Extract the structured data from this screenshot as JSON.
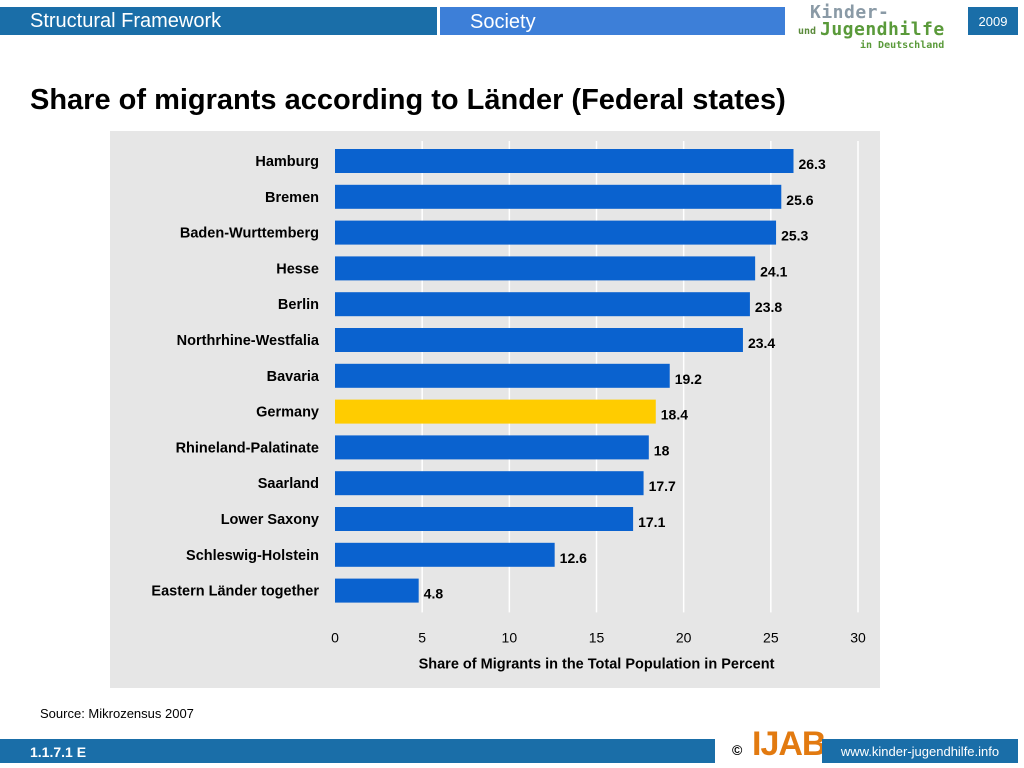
{
  "header": {
    "left_title": "Structural Framework",
    "right_title": "Society",
    "logo_line1": "Kinder-",
    "logo_line2_prefix": "und",
    "logo_line2": "Jugendhilfe",
    "logo_line3": "in Deutschland",
    "year": "2009"
  },
  "page_title": "Share of migrants according to Länder (Federal states)",
  "source": "Source: Mikrozensus 2007",
  "footer": {
    "slide_id": "1.1.7.1 E",
    "copyright": "©",
    "ijab": "IJAB",
    "url": "www.kinder-jugendhilfe.info"
  },
  "colors": {
    "bar": "#0a62cf",
    "highlight": "#ffcc00",
    "plot_bg": "#e6e6e6"
  },
  "chart_data": {
    "type": "bar",
    "orientation": "horizontal",
    "categories": [
      "Hamburg",
      "Bremen",
      "Baden-Wurttemberg",
      "Hesse",
      "Berlin",
      "Northrhine-Westfalia",
      "Bavaria",
      "Germany",
      "Rhineland-Palatinate",
      "Saarland",
      "Lower Saxony",
      "Schleswig-Holstein",
      "Eastern Länder together"
    ],
    "values": [
      26.3,
      25.6,
      25.3,
      24.1,
      23.8,
      23.4,
      19.2,
      18.4,
      18,
      17.7,
      17.1,
      12.6,
      4.8
    ],
    "value_labels": [
      "26.3",
      "25.6",
      "25.3",
      "24.1",
      "23.8",
      "23.4",
      "19.2",
      "18.4",
      "18",
      "17.7",
      "17.1",
      "12.6",
      "4.8"
    ],
    "highlight_category": "Germany",
    "xlabel": "Share of Migrants in the Total Population in Percent",
    "xlim": [
      0,
      30
    ],
    "xticks": [
      0,
      5,
      10,
      15,
      20,
      25,
      30
    ],
    "grid": true
  }
}
